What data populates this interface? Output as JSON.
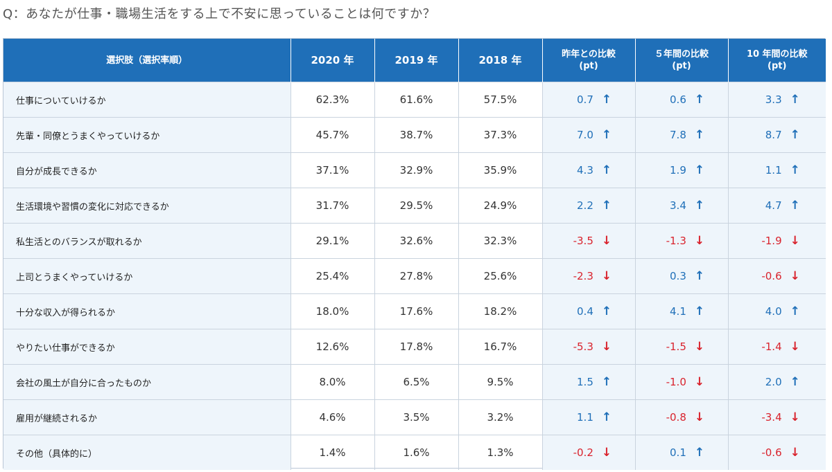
{
  "question": "Q：あなたが仕事・職場生活をする上で不安に思っていることは何ですか？",
  "headers": {
    "choice": "選択肢（選択率順）",
    "y2020": "2020 年",
    "y2019": "2019 年",
    "y2018": "2018 年",
    "cmp_prev_line1": "昨年との比較",
    "cmp_prev_line2": "(pt)",
    "cmp_5y_line1": "５年間の比較",
    "cmp_5y_line2": "(pt)",
    "cmp_10y_line1": "10 年間の比較",
    "cmp_10y_line2": "(pt)"
  },
  "colors": {
    "up": "#1f6fb8",
    "down": "#d9232d",
    "header_bg": "#1f6fb8"
  },
  "rows": [
    {
      "label": "仕事についていけるか",
      "y2020": "62.3%",
      "y2019": "61.6%",
      "y2018": "57.5%",
      "prev": "0.7",
      "prev_dir": "up",
      "y5": "0.6",
      "y5_dir": "up",
      "y10": "3.3",
      "y10_dir": "up"
    },
    {
      "label": "先輩・同僚とうまくやっていけるか",
      "y2020": "45.7%",
      "y2019": "38.7%",
      "y2018": "37.3%",
      "prev": "7.0",
      "prev_dir": "up",
      "y5": "7.8",
      "y5_dir": "up",
      "y10": "8.7",
      "y10_dir": "up"
    },
    {
      "label": "自分が成長できるか",
      "y2020": "37.1%",
      "y2019": "32.9%",
      "y2018": "35.9%",
      "prev": "4.3",
      "prev_dir": "up",
      "y5": "1.9",
      "y5_dir": "up",
      "y10": "1.1",
      "y10_dir": "up"
    },
    {
      "label": "生活環境や習慣の変化に対応できるか",
      "y2020": "31.7%",
      "y2019": "29.5%",
      "y2018": "24.9%",
      "prev": "2.2",
      "prev_dir": "up",
      "y5": "3.4",
      "y5_dir": "up",
      "y10": "4.7",
      "y10_dir": "up"
    },
    {
      "label": "私生活とのバランスが取れるか",
      "y2020": "29.1%",
      "y2019": "32.6%",
      "y2018": "32.3%",
      "prev": "-3.5",
      "prev_dir": "down",
      "y5": "-1.3",
      "y5_dir": "down",
      "y10": "-1.9",
      "y10_dir": "down"
    },
    {
      "label": "上司とうまくやっていけるか",
      "y2020": "25.4%",
      "y2019": "27.8%",
      "y2018": "25.6%",
      "prev": "-2.3",
      "prev_dir": "down",
      "y5": "0.3",
      "y5_dir": "up",
      "y10": "-0.6",
      "y10_dir": "down"
    },
    {
      "label": "十分な収入が得られるか",
      "y2020": "18.0%",
      "y2019": "17.6%",
      "y2018": "18.2%",
      "prev": "0.4",
      "prev_dir": "up",
      "y5": "4.1",
      "y5_dir": "up",
      "y10": "4.0",
      "y10_dir": "up"
    },
    {
      "label": "やりたい仕事ができるか",
      "y2020": "12.6%",
      "y2019": "17.8%",
      "y2018": "16.7%",
      "prev": "-5.3",
      "prev_dir": "down",
      "y5": "-1.5",
      "y5_dir": "down",
      "y10": "-1.4",
      "y10_dir": "down"
    },
    {
      "label": "会社の風土が自分に合ったものか",
      "y2020": "8.0%",
      "y2019": "6.5%",
      "y2018": "9.5%",
      "prev": "1.5",
      "prev_dir": "up",
      "y5": "-1.0",
      "y5_dir": "down",
      "y10": "2.0",
      "y10_dir": "up"
    },
    {
      "label": "雇用が継続されるか",
      "y2020": "4.6%",
      "y2019": "3.5%",
      "y2018": "3.2%",
      "prev": "1.1",
      "prev_dir": "up",
      "y5": "-0.8",
      "y5_dir": "down",
      "y10": "-3.4",
      "y10_dir": "down"
    },
    {
      "label": "その他（具体的に）",
      "y2020": "1.4%",
      "y2019": "1.6%",
      "y2018": "1.3%",
      "prev": "-0.2",
      "prev_dir": "down",
      "y5": "0.1",
      "y5_dir": "up",
      "y10": "-0.6",
      "y10_dir": "down"
    }
  ]
}
